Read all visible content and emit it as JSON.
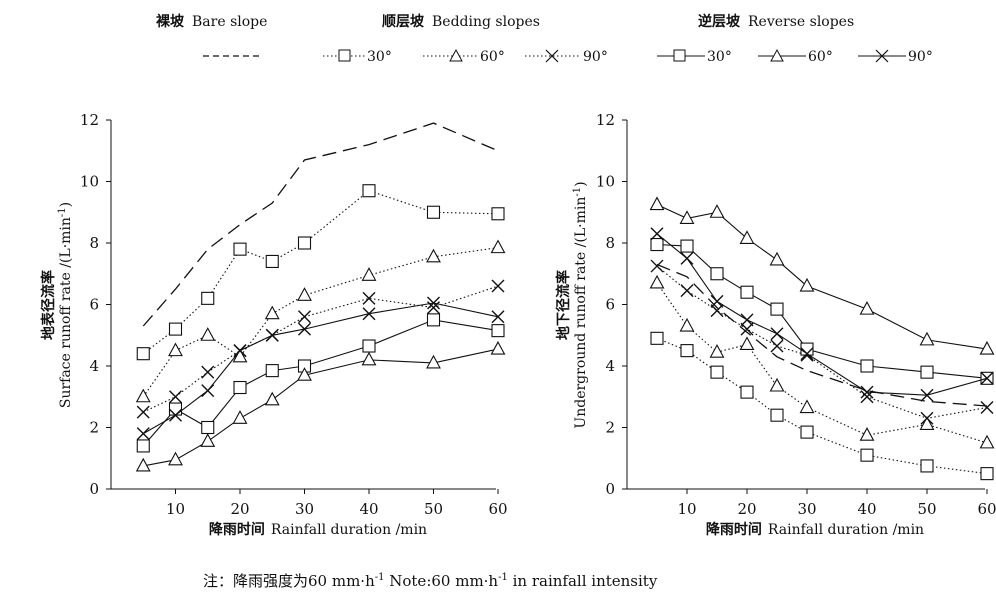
{
  "legend": {
    "bare": {
      "cn": "裸坡",
      "en": "Bare slope"
    },
    "bedding": {
      "cn": "顺层坡",
      "en": "Bedding slopes"
    },
    "reverse": {
      "cn": "逆层坡",
      "en": "Reverse slopes"
    },
    "angles": [
      "30°",
      "60°",
      "90°"
    ]
  },
  "note": {
    "prefix": "注：降雨强度为60 mm·h",
    "middle": " Note:60 mm·h",
    "suffix": " in rainfall intensity",
    "sup": "-1"
  },
  "chart_data": [
    {
      "type": "line",
      "x_label_cn": "降雨时间",
      "x_label_en": "Rainfall duration /min",
      "y_label_cn": "地表径流率",
      "y_label_en": "Surface runoff rate /(L·min",
      "y_label_sup": "-1",
      "y_label_end": ")",
      "xlim": [
        0,
        60
      ],
      "ylim": [
        0,
        12
      ],
      "x_ticks": [
        10,
        20,
        30,
        40,
        50,
        60
      ],
      "y_ticks": [
        0,
        2,
        4,
        6,
        8,
        10,
        12
      ],
      "series": [
        {
          "group": "bare",
          "style": "dashed",
          "marker": "none",
          "x": [
            5,
            10,
            15,
            20,
            25,
            30,
            40,
            50,
            60
          ],
          "y": [
            5.3,
            6.5,
            7.8,
            8.6,
            9.3,
            10.7,
            11.2,
            11.9,
            11.0
          ]
        },
        {
          "group": "bedding",
          "angle": "30°",
          "style": "dotted",
          "marker": "square",
          "x": [
            5,
            10,
            15,
            20,
            25,
            30,
            40,
            50,
            60
          ],
          "y": [
            4.4,
            5.2,
            6.2,
            7.8,
            7.4,
            8.0,
            9.7,
            9.0,
            8.95
          ]
        },
        {
          "group": "bedding",
          "angle": "60°",
          "style": "dotted",
          "marker": "triangle",
          "x": [
            5,
            10,
            15,
            20,
            25,
            30,
            40,
            50,
            60
          ],
          "y": [
            3.0,
            4.5,
            5.0,
            4.3,
            5.7,
            6.3,
            6.95,
            7.55,
            7.85
          ]
        },
        {
          "group": "bedding",
          "angle": "90°",
          "style": "dotted",
          "marker": "cross",
          "x": [
            5,
            10,
            15,
            20,
            25,
            30,
            40,
            50,
            60
          ],
          "y": [
            2.5,
            3.0,
            3.8,
            4.5,
            5.0,
            5.6,
            6.2,
            5.9,
            6.6
          ]
        },
        {
          "group": "reverse",
          "angle": "30°",
          "style": "solid",
          "marker": "square",
          "x": [
            5,
            10,
            15,
            20,
            25,
            30,
            40,
            50,
            60
          ],
          "y": [
            1.4,
            2.6,
            2.0,
            3.3,
            3.85,
            4.0,
            4.65,
            5.5,
            5.15
          ]
        },
        {
          "group": "reverse",
          "angle": "60°",
          "style": "solid",
          "marker": "triangle",
          "x": [
            5,
            10,
            15,
            20,
            25,
            30,
            40,
            50,
            60
          ],
          "y": [
            0.75,
            0.95,
            1.55,
            2.3,
            2.9,
            3.7,
            4.2,
            4.1,
            4.55
          ]
        },
        {
          "group": "reverse",
          "angle": "90°",
          "style": "solid",
          "marker": "cross",
          "x": [
            5,
            10,
            15,
            20,
            25,
            30,
            40,
            50,
            60
          ],
          "y": [
            1.8,
            2.4,
            3.2,
            4.5,
            5.0,
            5.2,
            5.7,
            6.05,
            5.6
          ]
        }
      ]
    },
    {
      "type": "line",
      "x_label_cn": "降雨时间",
      "x_label_en": "Rainfall duration /min",
      "y_label_cn": "地下径流率",
      "y_label_en": "Underground runoff rate /(L·min",
      "y_label_sup": "-1",
      "y_label_end": ")",
      "xlim": [
        0,
        60
      ],
      "ylim": [
        0,
        12
      ],
      "x_ticks": [
        10,
        20,
        30,
        40,
        50,
        60
      ],
      "y_ticks": [
        0,
        2,
        4,
        6,
        8,
        10,
        12
      ],
      "series": [
        {
          "group": "bare",
          "style": "dashed",
          "marker": "none",
          "x": [
            5,
            10,
            15,
            20,
            25,
            30,
            40,
            50,
            60
          ],
          "y": [
            7.3,
            6.9,
            5.9,
            5.1,
            4.3,
            3.85,
            3.2,
            2.85,
            2.7
          ]
        },
        {
          "group": "bedding",
          "angle": "30°",
          "style": "dotted",
          "marker": "square",
          "x": [
            5,
            10,
            15,
            20,
            25,
            30,
            40,
            50,
            60
          ],
          "y": [
            4.9,
            4.5,
            3.8,
            3.15,
            2.4,
            1.85,
            1.1,
            0.75,
            0.5
          ]
        },
        {
          "group": "bedding",
          "angle": "60°",
          "style": "dotted",
          "marker": "triangle",
          "x": [
            5,
            10,
            15,
            20,
            25,
            30,
            40,
            50,
            60
          ],
          "y": [
            6.7,
            5.3,
            4.45,
            4.7,
            3.35,
            2.65,
            1.75,
            2.1,
            1.5
          ]
        },
        {
          "group": "bedding",
          "angle": "90°",
          "style": "dotted",
          "marker": "cross",
          "x": [
            5,
            10,
            15,
            20,
            25,
            30,
            40,
            50,
            60
          ],
          "y": [
            7.25,
            6.45,
            5.8,
            5.2,
            4.65,
            4.35,
            3.0,
            2.3,
            2.65
          ]
        },
        {
          "group": "reverse",
          "angle": "30°",
          "style": "solid",
          "marker": "square",
          "x": [
            5,
            10,
            15,
            20,
            25,
            30,
            40,
            50,
            60
          ],
          "y": [
            7.95,
            7.9,
            7.0,
            6.4,
            5.85,
            4.55,
            4.0,
            3.8,
            3.6
          ]
        },
        {
          "group": "reverse",
          "angle": "60°",
          "style": "solid",
          "marker": "triangle",
          "x": [
            5,
            10,
            15,
            20,
            25,
            30,
            40,
            50,
            60
          ],
          "y": [
            9.25,
            8.8,
            9.0,
            8.15,
            7.45,
            6.6,
            5.85,
            4.85,
            4.55
          ]
        },
        {
          "group": "reverse",
          "angle": "90°",
          "style": "solid",
          "marker": "cross",
          "x": [
            5,
            10,
            15,
            20,
            25,
            30,
            40,
            50,
            60
          ],
          "y": [
            8.3,
            7.5,
            6.1,
            5.5,
            5.05,
            4.4,
            3.15,
            3.05,
            3.6
          ]
        }
      ]
    }
  ]
}
